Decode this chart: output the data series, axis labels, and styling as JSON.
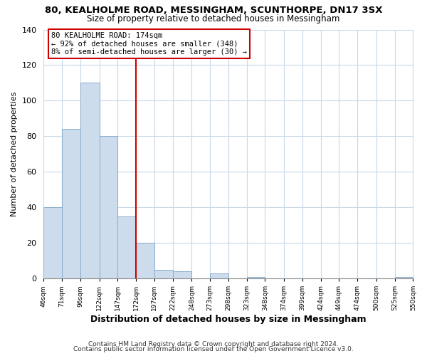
{
  "title": "80, KEALHOLME ROAD, MESSINGHAM, SCUNTHORPE, DN17 3SX",
  "subtitle": "Size of property relative to detached houses in Messingham",
  "xlabel": "Distribution of detached houses by size in Messingham",
  "ylabel": "Number of detached properties",
  "bar_edges": [
    46,
    71,
    96,
    122,
    147,
    172,
    197,
    222,
    248,
    273,
    298,
    323,
    348,
    374,
    399,
    424,
    449,
    474,
    500,
    525,
    550
  ],
  "bar_heights": [
    40,
    84,
    110,
    80,
    35,
    20,
    5,
    4,
    0,
    3,
    0,
    1,
    0,
    0,
    0,
    0,
    0,
    0,
    0,
    1
  ],
  "bar_color": "#ccdcec",
  "bar_edgecolor": "#8aaccb",
  "vline_x": 172,
  "vline_color": "#cc0000",
  "annotation_text": "80 KEALHOLME ROAD: 174sqm\n← 92% of detached houses are smaller (348)\n8% of semi-detached houses are larger (30) →",
  "ylim": [
    0,
    140
  ],
  "yticks": [
    0,
    20,
    40,
    60,
    80,
    100,
    120,
    140
  ],
  "footer_line1": "Contains HM Land Registry data © Crown copyright and database right 2024.",
  "footer_line2": "Contains public sector information licensed under the Open Government Licence v3.0.",
  "bg_color": "#ffffff",
  "plot_bg_color": "#ffffff",
  "grid_color": "#c8d8e8"
}
